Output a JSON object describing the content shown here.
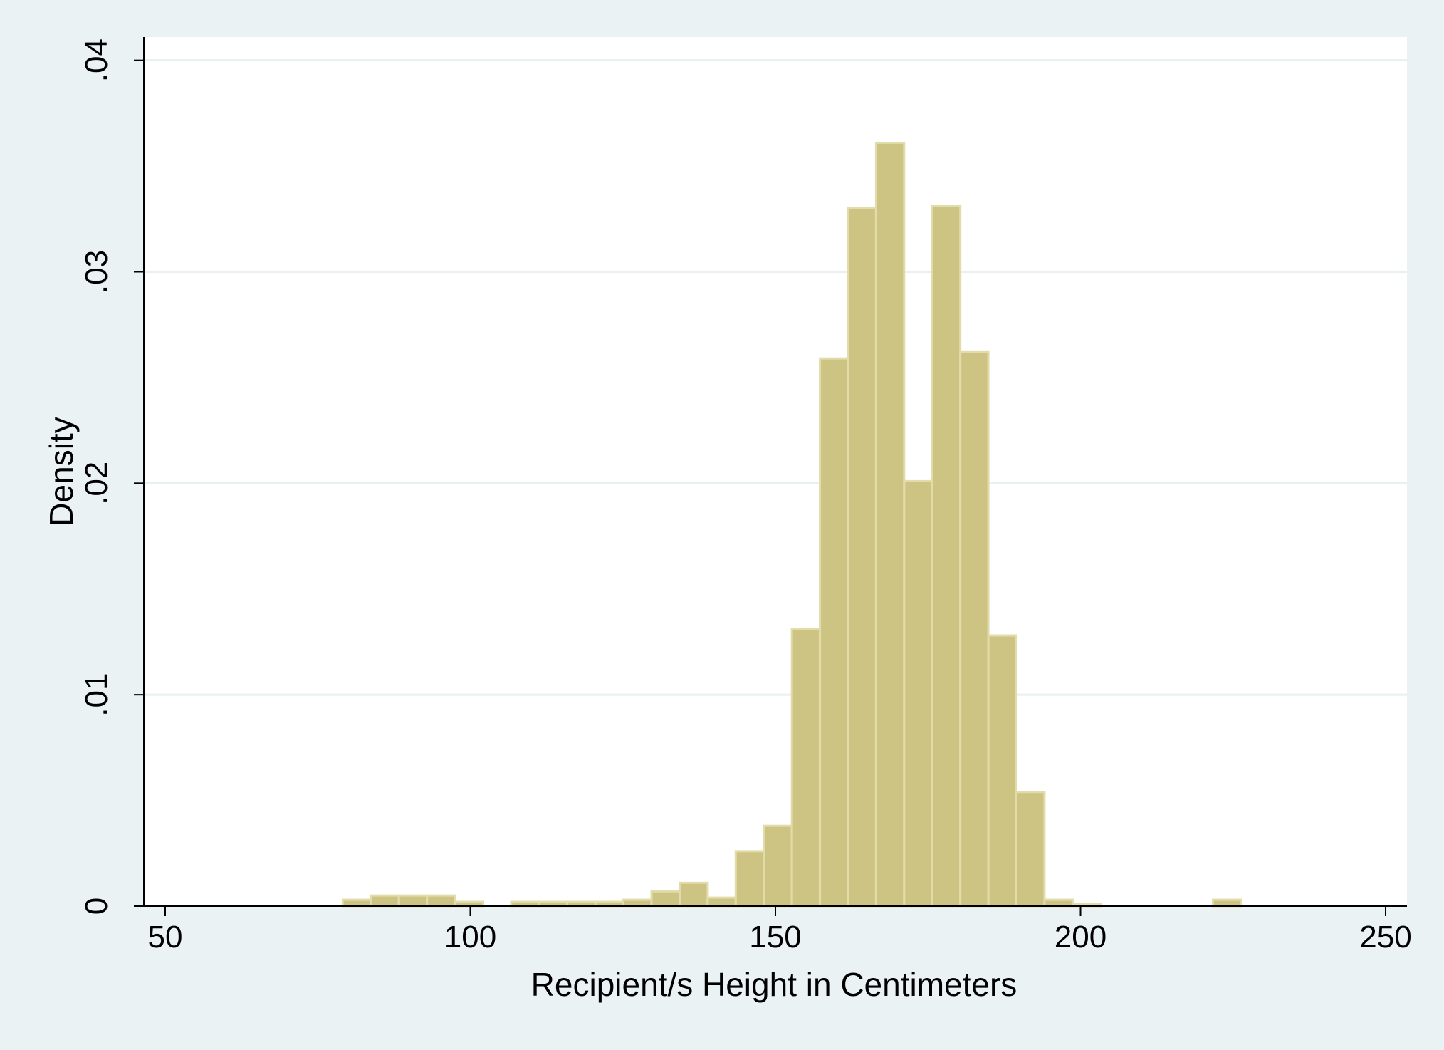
{
  "colors": {
    "page_background": "#eaf2f3",
    "plot_background": "#ffffff",
    "bar_fill": "#cdc484",
    "bar_edge": "#e2dcaa",
    "gridline": "#e8f0f0",
    "axis": "#000000"
  },
  "chart_data": {
    "type": "bar",
    "subtype": "histogram",
    "title": "",
    "xlabel": "Recipient/s Height in Centimeters",
    "ylabel": "Density",
    "xlim": [
      46.5,
      253.5
    ],
    "ylim": [
      0,
      0.0411
    ],
    "grid": true,
    "x_ticks": [
      {
        "value": 50,
        "label": "50"
      },
      {
        "value": 100,
        "label": "100"
      },
      {
        "value": 150,
        "label": "150"
      },
      {
        "value": 200,
        "label": "200"
      },
      {
        "value": 250,
        "label": "250"
      }
    ],
    "y_ticks": [
      {
        "value": 0,
        "label": "0"
      },
      {
        "value": 0.01,
        "label": ".01"
      },
      {
        "value": 0.02,
        "label": ".02"
      },
      {
        "value": 0.03,
        "label": ".03"
      },
      {
        "value": 0.04,
        "label": ".04"
      }
    ],
    "bin_width": 4.6,
    "bins": [
      {
        "start": 79.1,
        "density": 0.0003
      },
      {
        "start": 83.7,
        "density": 0.0005
      },
      {
        "start": 88.3,
        "density": 0.0005
      },
      {
        "start": 92.9,
        "density": 0.0005
      },
      {
        "start": 97.5,
        "density": 0.0002
      },
      {
        "start": 106.7,
        "density": 0.0002
      },
      {
        "start": 111.3,
        "density": 0.0002
      },
      {
        "start": 115.9,
        "density": 0.0002
      },
      {
        "start": 120.5,
        "density": 0.0002
      },
      {
        "start": 125.1,
        "density": 0.0003
      },
      {
        "start": 129.7,
        "density": 0.0007
      },
      {
        "start": 134.3,
        "density": 0.0011
      },
      {
        "start": 138.9,
        "density": 0.0004
      },
      {
        "start": 143.5,
        "density": 0.0026
      },
      {
        "start": 148.1,
        "density": 0.0038
      },
      {
        "start": 152.7,
        "density": 0.0131
      },
      {
        "start": 157.3,
        "density": 0.0259
      },
      {
        "start": 161.9,
        "density": 0.033
      },
      {
        "start": 166.5,
        "density": 0.0361
      },
      {
        "start": 171.1,
        "density": 0.0201
      },
      {
        "start": 175.7,
        "density": 0.0331
      },
      {
        "start": 180.3,
        "density": 0.0262
      },
      {
        "start": 184.9,
        "density": 0.0128
      },
      {
        "start": 189.5,
        "density": 0.0054
      },
      {
        "start": 194.1,
        "density": 0.0003
      },
      {
        "start": 198.7,
        "density": 0.0001
      },
      {
        "start": 221.7,
        "density": 0.0003
      }
    ]
  }
}
